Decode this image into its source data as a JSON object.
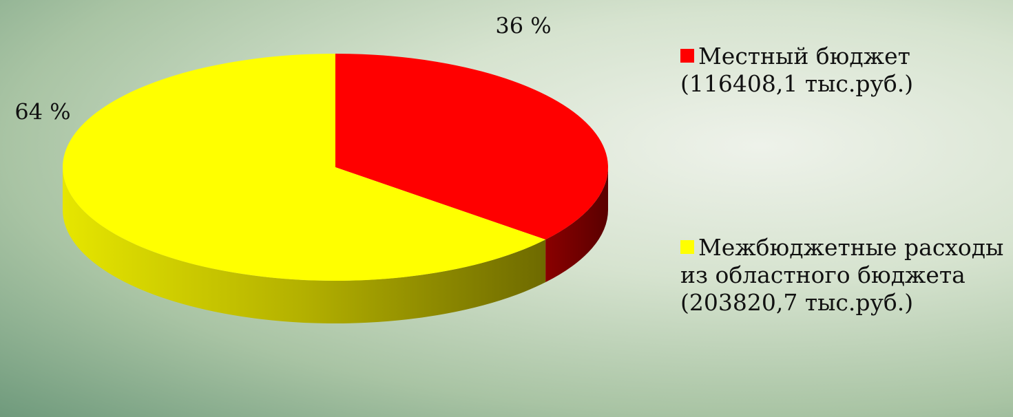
{
  "chart_data": {
    "type": "pie",
    "categories": [
      "Местный бюджет (116408,1 тыс.руб.)",
      "Межбюджетные расходы из областного бюджета (203820,7 тыс.руб.)"
    ],
    "values": [
      36,
      64
    ],
    "value_labels": [
      "36 %",
      "64 %"
    ],
    "colors": [
      "#ff0000",
      "#ffff00"
    ],
    "legend": "right"
  }
}
